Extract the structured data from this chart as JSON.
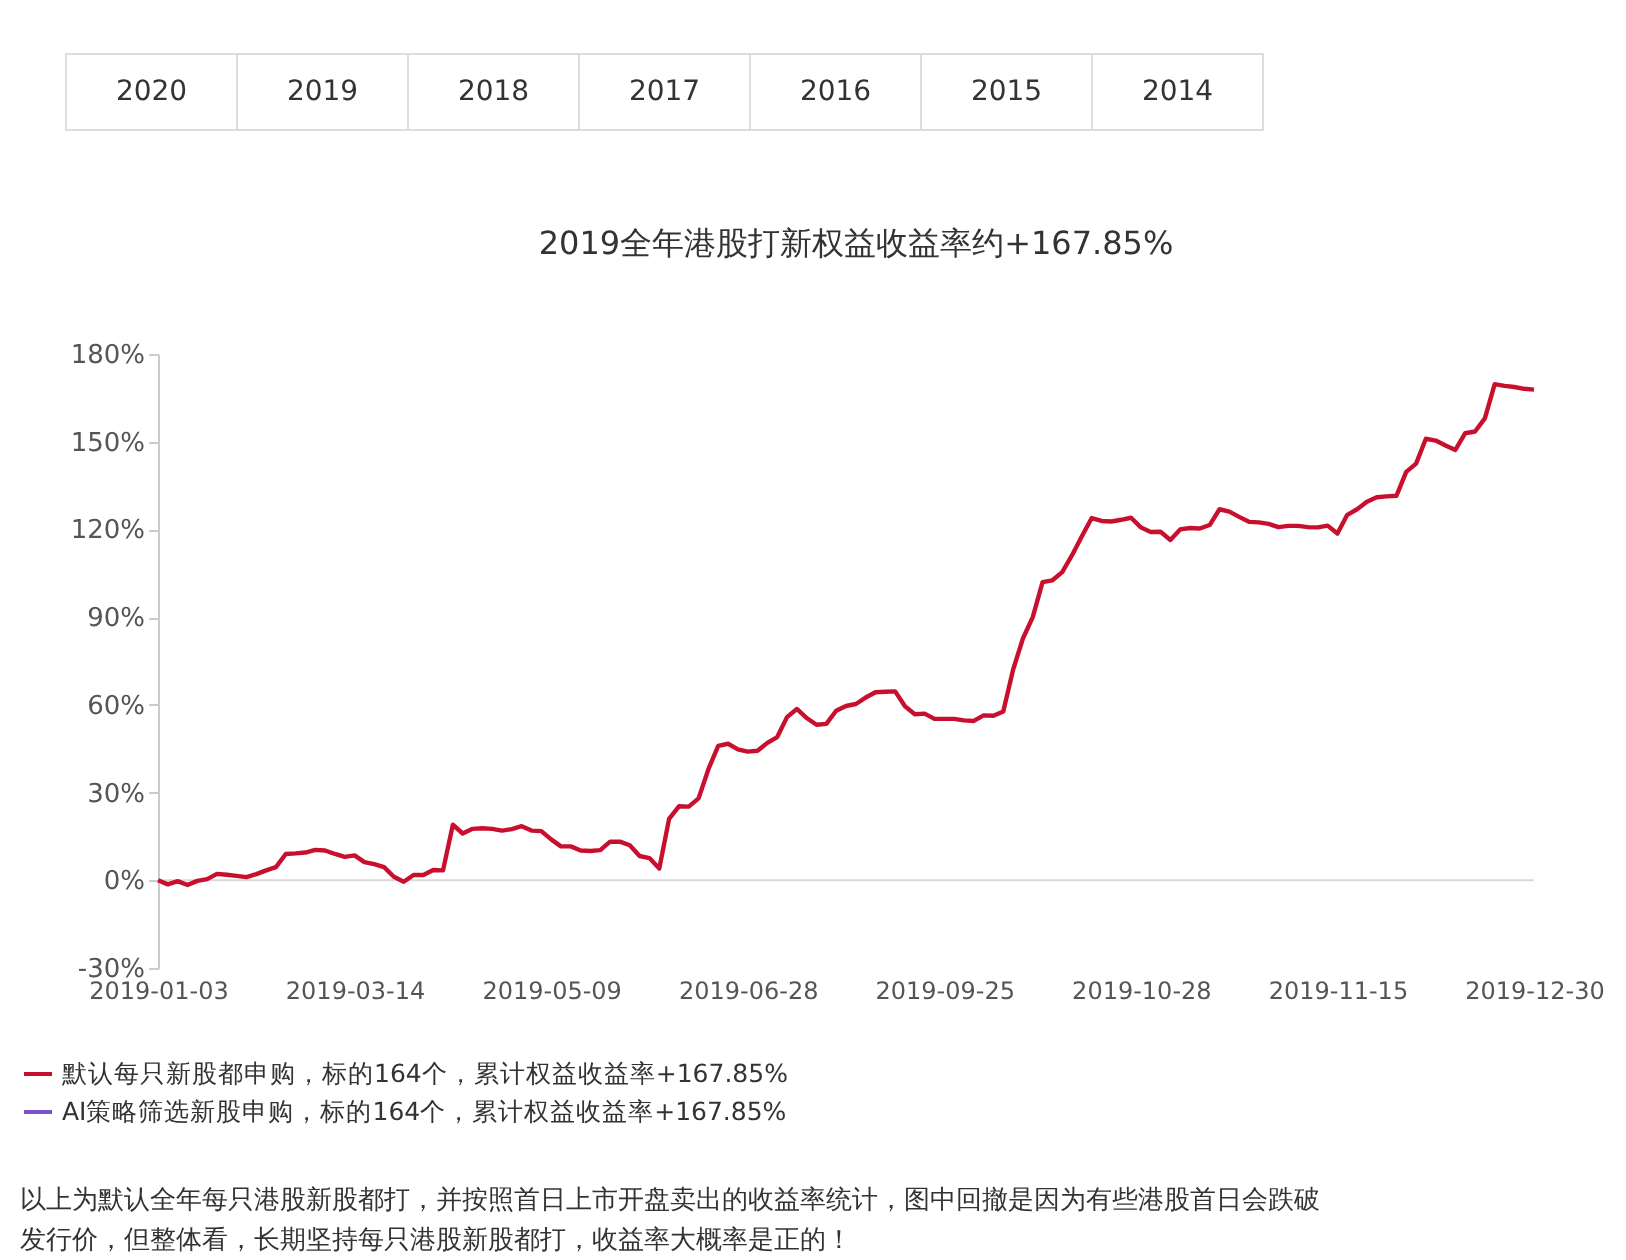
{
  "chart_data": {
    "type": "line",
    "title": "2019全年港股打新权益收益率约+167.85%",
    "categories": [
      "2019-01-03",
      null,
      null,
      null,
      null,
      null,
      null,
      null,
      null,
      null,
      null,
      null,
      null,
      null,
      null,
      null,
      null,
      null,
      null,
      null,
      "2019-03-14",
      null,
      null,
      null,
      null,
      null,
      null,
      null,
      null,
      null,
      null,
      null,
      null,
      null,
      null,
      null,
      null,
      null,
      null,
      null,
      "2019-05-09",
      null,
      null,
      null,
      null,
      null,
      null,
      null,
      null,
      null,
      null,
      null,
      null,
      null,
      null,
      null,
      null,
      null,
      null,
      null,
      "2019-06-28",
      null,
      null,
      null,
      null,
      null,
      null,
      null,
      null,
      null,
      null,
      null,
      null,
      null,
      null,
      null,
      null,
      null,
      null,
      null,
      "2019-09-25",
      null,
      null,
      null,
      null,
      null,
      null,
      null,
      null,
      null,
      null,
      null,
      null,
      null,
      null,
      null,
      null,
      null,
      null,
      null,
      "2019-10-28",
      null,
      null,
      null,
      null,
      null,
      null,
      null,
      null,
      null,
      null,
      null,
      null,
      null,
      null,
      null,
      null,
      null,
      null,
      null,
      "2019-11-15",
      null,
      null,
      null,
      null,
      null,
      null,
      null,
      null,
      null,
      null,
      null,
      null,
      null,
      null,
      null,
      null,
      null,
      null,
      null,
      "2019-12-30"
    ],
    "series": [
      {
        "name": "默认每只新股都申购，标的164个，累计权益收益率+167.85%",
        "color": "#c8102e",
        "values": [
          0,
          -1.4,
          -0.3,
          -1.6,
          -0.2,
          0.4,
          2.2,
          1.9,
          1.5,
          1.1,
          2.1,
          3.4,
          4.5,
          9,
          9.2,
          9.5,
          10.4,
          10.2,
          9,
          8,
          8.5,
          6.2,
          5.5,
          4.5,
          1.2,
          -0.5,
          1.8,
          1.8,
          3.5,
          3.4,
          19,
          16,
          17.6,
          17.8,
          17.6,
          17,
          17.5,
          18.5,
          17,
          16.8,
          14,
          11.6,
          11.6,
          10.2,
          10,
          10.3,
          13.2,
          13.2,
          12,
          8.3,
          7.6,
          4,
          21,
          25.3,
          25.2,
          28,
          38,
          46,
          46.7,
          44.8,
          44,
          44.3,
          47,
          49,
          55.8,
          58.6,
          55.5,
          53.2,
          53.5,
          58,
          59.6,
          60.3,
          62.5,
          64.3,
          64.5,
          64.6,
          59.5,
          56.8,
          57,
          55.2,
          55.2,
          55.2,
          54.7,
          54.5,
          56.4,
          56.3,
          57.7,
          72,
          82.7,
          90,
          102,
          102.6,
          105.4,
          111.2,
          117.7,
          123.9,
          122.9,
          122.7,
          123.3,
          124,
          120.7,
          119.1,
          119.2,
          116.4,
          120,
          120.5,
          120.3,
          121.5,
          126.9,
          126.1,
          124.3,
          122.6,
          122.4,
          121.9,
          120.8,
          121.2,
          121.2,
          120.8,
          120.7,
          121.3,
          118.6,
          125,
          126.9,
          129.5,
          131,
          131.3,
          131.5,
          139.7,
          142.5,
          151,
          150.4,
          148.7,
          147.2,
          152.9,
          153.5,
          158,
          169.7,
          169.1,
          168.7,
          168.1,
          167.8
        ]
      },
      {
        "name": "AI策略筛选新股申购，标的164个，累计权益收益率+167.85%",
        "color": "#7b52c9",
        "values": [
          null,
          null,
          null,
          null,
          null,
          null,
          null,
          null,
          null,
          null,
          null,
          null,
          null,
          null,
          null,
          null,
          null,
          null,
          null,
          null,
          null,
          null,
          null,
          null,
          null,
          null,
          null,
          null,
          null,
          null,
          null,
          null,
          null,
          null,
          null,
          null,
          null,
          null,
          null,
          null,
          null,
          null,
          null,
          null,
          null,
          null,
          null,
          null,
          null,
          null,
          null,
          null,
          null,
          null,
          null,
          null,
          null,
          null,
          null,
          null,
          null,
          null,
          null,
          null,
          null,
          null,
          null,
          null,
          null,
          null,
          null,
          null,
          null,
          null,
          null,
          null,
          null,
          null,
          null,
          null,
          null,
          null,
          null,
          null,
          null,
          null,
          null,
          null,
          null,
          null,
          null,
          null,
          null,
          null,
          null,
          null,
          null,
          null,
          null,
          null,
          null,
          null,
          null,
          null,
          null,
          null,
          null,
          null,
          null,
          null,
          null,
          null,
          null,
          null,
          null,
          null,
          null,
          null,
          null,
          null,
          null,
          null,
          null,
          null,
          null,
          null,
          null,
          null,
          null,
          null,
          null,
          null,
          null,
          null,
          null,
          null,
          null,
          null,
          null,
          null,
          null
        ]
      }
    ],
    "ylim": [
      -30,
      180
    ],
    "yticks": [
      {
        "value": -30,
        "label": "-30%"
      },
      {
        "value": 0,
        "label": "0%"
      },
      {
        "value": 30,
        "label": "30%"
      },
      {
        "value": 60,
        "label": "60%"
      },
      {
        "value": 90,
        "label": "90%"
      },
      {
        "value": 120,
        "label": "120%"
      },
      {
        "value": 150,
        "label": "150%"
      },
      {
        "value": 180,
        "label": "180%"
      }
    ],
    "ref_lines": [
      {
        "axis": "y",
        "value": 0,
        "color": "#d9d9d9"
      }
    ],
    "legend": "bottom",
    "grid": false,
    "line_style": "solid",
    "marker": "none",
    "annotations": [
      "2020",
      "2019",
      "2018",
      "2017",
      "2016",
      "2015",
      "2014",
      "以上为默认全年每只港股新股都打，并按照首日上市开盘卖出的收益率统计，图中回撤是因为有些港股首日会跌破发行价，但整体看，长期坚持每只港股新股都打，收益率大概率是正的！"
    ]
  }
}
